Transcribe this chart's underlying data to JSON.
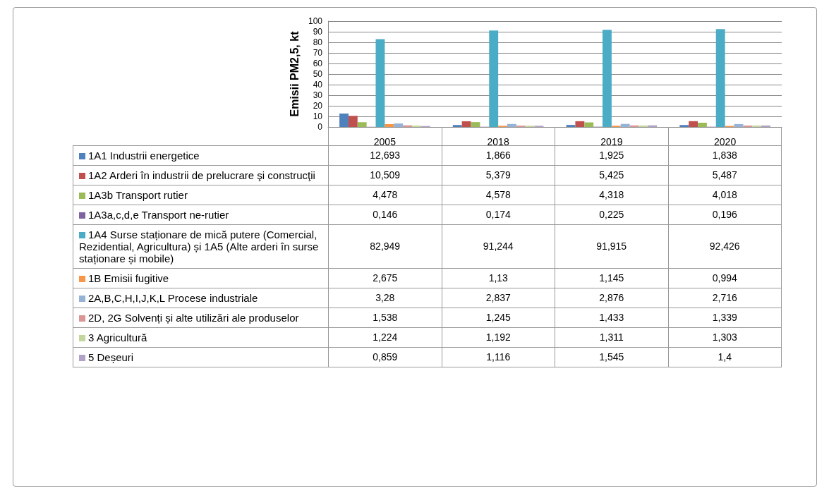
{
  "chart_data": {
    "type": "bar",
    "ylabel": "Emisii PM2,5, kt",
    "categories": [
      "2005",
      "2018",
      "2019",
      "2020"
    ],
    "ylim": [
      0,
      100
    ],
    "yticks": [
      0,
      10,
      20,
      30,
      40,
      50,
      60,
      70,
      80,
      90,
      100
    ],
    "grid": "y",
    "legend": "bottom",
    "series": [
      {
        "name": "1A1 Industrii energetice",
        "color": "#4f81bd",
        "values": [
          12.693,
          1.866,
          1.925,
          1.838
        ],
        "value_labels": [
          "12,693",
          "1,866",
          "1,925",
          "1,838"
        ]
      },
      {
        "name": "1A2 Arderi în industrii de prelucrare şi construcţii",
        "color": "#c0504d",
        "values": [
          10.509,
          5.379,
          5.425,
          5.487
        ],
        "value_labels": [
          "10,509",
          "5,379",
          "5,425",
          "5,487"
        ]
      },
      {
        "name": "1A3b Transport rutier",
        "color": "#9bbb59",
        "values": [
          4.478,
          4.578,
          4.318,
          4.018
        ],
        "value_labels": [
          "4,478",
          "4,578",
          "4,318",
          "4,018"
        ]
      },
      {
        "name": "1A3a,c,d,e Transport ne-rutier",
        "color": "#8064a2",
        "values": [
          0.146,
          0.174,
          0.225,
          0.196
        ],
        "value_labels": [
          "0,146",
          "0,174",
          "0,225",
          "0,196"
        ]
      },
      {
        "name": "1A4 Surse staționare de mică putere (Comercial, Rezidential, Agricultura) și 1A5 (Alte arderi în surse staționare și mobile)",
        "color": "#4bacc6",
        "values": [
          82.949,
          91.244,
          91.915,
          92.426
        ],
        "value_labels": [
          "82,949",
          "91,244",
          "91,915",
          "92,426"
        ]
      },
      {
        "name": "1B Emisii fugitive",
        "color": "#f79646",
        "values": [
          2.675,
          1.13,
          1.145,
          0.994
        ],
        "value_labels": [
          "2,675",
          "1,13",
          "1,145",
          "0,994"
        ]
      },
      {
        "name": "2A,B,C,H,I,J,K,L Procese industriale",
        "color": "#95b3d7",
        "values": [
          3.28,
          2.837,
          2.876,
          2.716
        ],
        "value_labels": [
          "3,28",
          "2,837",
          "2,876",
          "2,716"
        ]
      },
      {
        "name": "2D, 2G Solvenți și alte utilizări ale produselor",
        "color": "#d99694",
        "values": [
          1.538,
          1.245,
          1.433,
          1.339
        ],
        "value_labels": [
          "1,538",
          "1,245",
          "1,433",
          "1,339"
        ]
      },
      {
        "name": "3 Agricultură",
        "color": "#c3d69b",
        "values": [
          1.224,
          1.192,
          1.311,
          1.303
        ],
        "value_labels": [
          "1,224",
          "1,192",
          "1,311",
          "1,303"
        ]
      },
      {
        "name": "5 Deșeuri",
        "color": "#b3a2c7",
        "values": [
          0.859,
          1.116,
          1.545,
          1.4
        ],
        "value_labels": [
          "0,859",
          "1,116",
          "1,545",
          "1,4"
        ]
      }
    ]
  }
}
